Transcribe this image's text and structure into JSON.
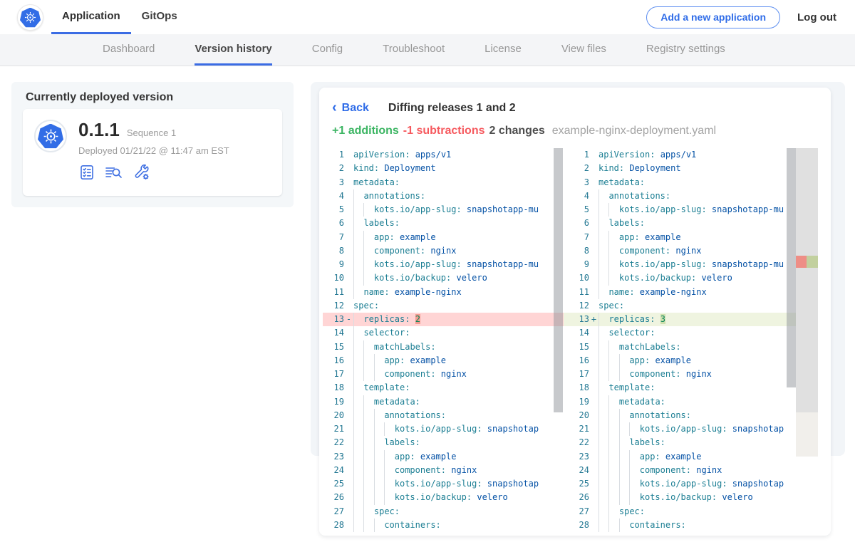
{
  "colors": {
    "accent_blue": "#326de6",
    "link_blue": "#2f6ce8",
    "addition_green": "#3cb563",
    "subtraction_red": "#f65a5f",
    "removed_line_bg": "#ffd5d5",
    "removed_char_bg": "#f49b91",
    "added_line_bg": "#eff4e0",
    "added_char_bg": "#cfdfae",
    "code_key": "#1b7e93",
    "code_value": "#0451a5",
    "code_number": "#098658",
    "line_number": "#237893"
  },
  "topnav": {
    "logo_icon": "kubernetes-wheel-icon",
    "tabs": [
      {
        "label": "Application",
        "active": true
      },
      {
        "label": "GitOps",
        "active": false
      }
    ],
    "add_button_label": "Add a new application",
    "logout_label": "Log out"
  },
  "subnav": {
    "items": [
      "Dashboard",
      "Version history",
      "Config",
      "Troubleshoot",
      "License",
      "View files",
      "Registry settings"
    ],
    "active": "Version history"
  },
  "deployed_card": {
    "title": "Currently deployed version",
    "logo_icon": "kubernetes-wheel-icon",
    "version": "0.1.1",
    "sequence": "Sequence 1",
    "deployed": "Deployed 01/21/22 @ 11:47 am EST",
    "action_icons": [
      "checklist-icon",
      "view-logs-icon",
      "tools-icon"
    ]
  },
  "diff": {
    "back_label": "Back",
    "back_chevron": "‹",
    "title": "Diffing releases 1 and 2",
    "additions": "+1 additions",
    "subtractions": "-1 subtractions",
    "changes": "2 changes",
    "filename": "example-nginx-deployment.yaml",
    "left_lines": [
      {
        "n": 1,
        "i": 0,
        "s": [
          [
            "k",
            "apiVersion:"
          ],
          [
            "v",
            " apps/v1"
          ]
        ]
      },
      {
        "n": 2,
        "i": 0,
        "s": [
          [
            "k",
            "kind:"
          ],
          [
            "v",
            " Deployment"
          ]
        ]
      },
      {
        "n": 3,
        "i": 0,
        "s": [
          [
            "k",
            "metadata:"
          ]
        ]
      },
      {
        "n": 4,
        "i": 1,
        "s": [
          [
            "k",
            "annotations:"
          ]
        ]
      },
      {
        "n": 5,
        "i": 2,
        "s": [
          [
            "k",
            "kots.io/app-slug:"
          ],
          [
            "v",
            " snapshotapp-mu"
          ]
        ]
      },
      {
        "n": 6,
        "i": 1,
        "s": [
          [
            "k",
            "labels:"
          ]
        ]
      },
      {
        "n": 7,
        "i": 2,
        "s": [
          [
            "k",
            "app:"
          ],
          [
            "v",
            " example"
          ]
        ]
      },
      {
        "n": 8,
        "i": 2,
        "s": [
          [
            "k",
            "component:"
          ],
          [
            "v",
            " nginx"
          ]
        ]
      },
      {
        "n": 9,
        "i": 2,
        "s": [
          [
            "k",
            "kots.io/app-slug:"
          ],
          [
            "v",
            " snapshotapp-mu"
          ]
        ]
      },
      {
        "n": 10,
        "i": 2,
        "s": [
          [
            "k",
            "kots.io/backup:"
          ],
          [
            "v",
            " velero"
          ]
        ]
      },
      {
        "n": 11,
        "i": 1,
        "s": [
          [
            "k",
            "name:"
          ],
          [
            "v",
            " example-nginx"
          ]
        ]
      },
      {
        "n": 12,
        "i": 0,
        "s": [
          [
            "k",
            "spec:"
          ]
        ]
      },
      {
        "n": 13,
        "i": 1,
        "sign": "-",
        "change": "del",
        "s": [
          [
            "k",
            "replicas:"
          ],
          [
            "p",
            " "
          ],
          [
            "nd",
            "2"
          ]
        ]
      },
      {
        "n": 14,
        "i": 1,
        "s": [
          [
            "k",
            "selector:"
          ]
        ]
      },
      {
        "n": 15,
        "i": 2,
        "s": [
          [
            "k",
            "matchLabels:"
          ]
        ]
      },
      {
        "n": 16,
        "i": 3,
        "s": [
          [
            "k",
            "app:"
          ],
          [
            "v",
            " example"
          ]
        ]
      },
      {
        "n": 17,
        "i": 3,
        "s": [
          [
            "k",
            "component:"
          ],
          [
            "v",
            " nginx"
          ]
        ]
      },
      {
        "n": 18,
        "i": 1,
        "s": [
          [
            "k",
            "template:"
          ]
        ]
      },
      {
        "n": 19,
        "i": 2,
        "s": [
          [
            "k",
            "metadata:"
          ]
        ]
      },
      {
        "n": 20,
        "i": 3,
        "s": [
          [
            "k",
            "annotations:"
          ]
        ]
      },
      {
        "n": 21,
        "i": 4,
        "s": [
          [
            "k",
            "kots.io/app-slug:"
          ],
          [
            "v",
            " snapshotap"
          ]
        ]
      },
      {
        "n": 22,
        "i": 3,
        "s": [
          [
            "k",
            "labels:"
          ]
        ]
      },
      {
        "n": 23,
        "i": 4,
        "s": [
          [
            "k",
            "app:"
          ],
          [
            "v",
            " example"
          ]
        ]
      },
      {
        "n": 24,
        "i": 4,
        "s": [
          [
            "k",
            "component:"
          ],
          [
            "v",
            " nginx"
          ]
        ]
      },
      {
        "n": 25,
        "i": 4,
        "s": [
          [
            "k",
            "kots.io/app-slug:"
          ],
          [
            "v",
            " snapshotap"
          ]
        ]
      },
      {
        "n": 26,
        "i": 4,
        "s": [
          [
            "k",
            "kots.io/backup:"
          ],
          [
            "v",
            " velero"
          ]
        ]
      },
      {
        "n": 27,
        "i": 2,
        "s": [
          [
            "k",
            "spec:"
          ]
        ]
      },
      {
        "n": 28,
        "i": 3,
        "s": [
          [
            "k",
            "containers:"
          ]
        ]
      }
    ],
    "right_lines": [
      {
        "n": 1,
        "i": 0,
        "s": [
          [
            "k",
            "apiVersion:"
          ],
          [
            "v",
            " apps/v1"
          ]
        ]
      },
      {
        "n": 2,
        "i": 0,
        "s": [
          [
            "k",
            "kind:"
          ],
          [
            "v",
            " Deployment"
          ]
        ]
      },
      {
        "n": 3,
        "i": 0,
        "s": [
          [
            "k",
            "metadata:"
          ]
        ]
      },
      {
        "n": 4,
        "i": 1,
        "s": [
          [
            "k",
            "annotations:"
          ]
        ]
      },
      {
        "n": 5,
        "i": 2,
        "s": [
          [
            "k",
            "kots.io/app-slug:"
          ],
          [
            "v",
            " snapshotapp-mu"
          ]
        ]
      },
      {
        "n": 6,
        "i": 1,
        "s": [
          [
            "k",
            "labels:"
          ]
        ]
      },
      {
        "n": 7,
        "i": 2,
        "s": [
          [
            "k",
            "app:"
          ],
          [
            "v",
            " example"
          ]
        ]
      },
      {
        "n": 8,
        "i": 2,
        "s": [
          [
            "k",
            "component:"
          ],
          [
            "v",
            " nginx"
          ]
        ]
      },
      {
        "n": 9,
        "i": 2,
        "s": [
          [
            "k",
            "kots.io/app-slug:"
          ],
          [
            "v",
            " snapshotapp-mu"
          ]
        ]
      },
      {
        "n": 10,
        "i": 2,
        "s": [
          [
            "k",
            "kots.io/backup:"
          ],
          [
            "v",
            " velero"
          ]
        ]
      },
      {
        "n": 11,
        "i": 1,
        "s": [
          [
            "k",
            "name:"
          ],
          [
            "v",
            " example-nginx"
          ]
        ]
      },
      {
        "n": 12,
        "i": 0,
        "s": [
          [
            "k",
            "spec:"
          ]
        ]
      },
      {
        "n": 13,
        "i": 1,
        "sign": "+",
        "change": "add",
        "s": [
          [
            "k",
            "replicas:"
          ],
          [
            "p",
            " "
          ],
          [
            "na",
            "3"
          ]
        ]
      },
      {
        "n": 14,
        "i": 1,
        "s": [
          [
            "k",
            "selector:"
          ]
        ]
      },
      {
        "n": 15,
        "i": 2,
        "s": [
          [
            "k",
            "matchLabels:"
          ]
        ]
      },
      {
        "n": 16,
        "i": 3,
        "s": [
          [
            "k",
            "app:"
          ],
          [
            "v",
            " example"
          ]
        ]
      },
      {
        "n": 17,
        "i": 3,
        "s": [
          [
            "k",
            "component:"
          ],
          [
            "v",
            " nginx"
          ]
        ]
      },
      {
        "n": 18,
        "i": 1,
        "s": [
          [
            "k",
            "template:"
          ]
        ]
      },
      {
        "n": 19,
        "i": 2,
        "s": [
          [
            "k",
            "metadata:"
          ]
        ]
      },
      {
        "n": 20,
        "i": 3,
        "s": [
          [
            "k",
            "annotations:"
          ]
        ]
      },
      {
        "n": 21,
        "i": 4,
        "s": [
          [
            "k",
            "kots.io/app-slug:"
          ],
          [
            "v",
            " snapshotap"
          ]
        ]
      },
      {
        "n": 22,
        "i": 3,
        "s": [
          [
            "k",
            "labels:"
          ]
        ]
      },
      {
        "n": 23,
        "i": 4,
        "s": [
          [
            "k",
            "app:"
          ],
          [
            "v",
            " example"
          ]
        ]
      },
      {
        "n": 24,
        "i": 4,
        "s": [
          [
            "k",
            "component:"
          ],
          [
            "v",
            " nginx"
          ]
        ]
      },
      {
        "n": 25,
        "i": 4,
        "s": [
          [
            "k",
            "kots.io/app-slug:"
          ],
          [
            "v",
            " snapshotap"
          ]
        ]
      },
      {
        "n": 26,
        "i": 4,
        "s": [
          [
            "k",
            "kots.io/backup:"
          ],
          [
            "v",
            " velero"
          ]
        ]
      },
      {
        "n": 27,
        "i": 2,
        "s": [
          [
            "k",
            "spec:"
          ]
        ]
      },
      {
        "n": 28,
        "i": 3,
        "s": [
          [
            "k",
            "containers:"
          ]
        ]
      }
    ]
  }
}
